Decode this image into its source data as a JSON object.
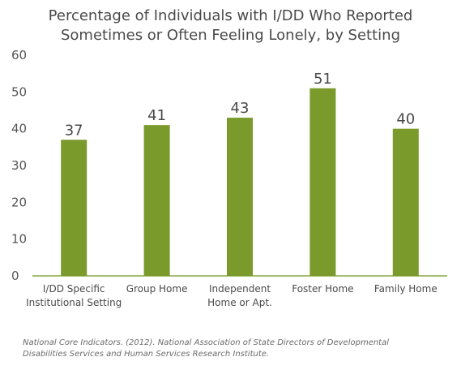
{
  "chart_data": {
    "type": "bar",
    "title_lines": [
      "Percentage of Individuals with I/DD Who Reported",
      "Sometimes or Often Feeling Lonely, by Setting"
    ],
    "categories": [
      [
        "I/DD Specific",
        "Institutional Setting"
      ],
      [
        "Group Home"
      ],
      [
        "Independent",
        "Home or Apt."
      ],
      [
        "Foster Home"
      ],
      [
        "Family Home"
      ]
    ],
    "values": [
      37,
      41,
      43,
      51,
      40
    ],
    "value_labels": [
      "37",
      "41",
      "43",
      "51",
      "40"
    ],
    "ylim": [
      0,
      60
    ],
    "yticks": [
      0,
      10,
      20,
      30,
      40,
      50,
      60
    ],
    "xlabel": "",
    "ylabel": "",
    "grid": false,
    "bar_color": "#7a9a2c",
    "axis_color": "#8aa840"
  },
  "source": {
    "lines": [
      "National Core Indicators. (2012). National Association of State Directors of Developmental",
      "Disabilities Services and Human Services Research Institute."
    ]
  }
}
